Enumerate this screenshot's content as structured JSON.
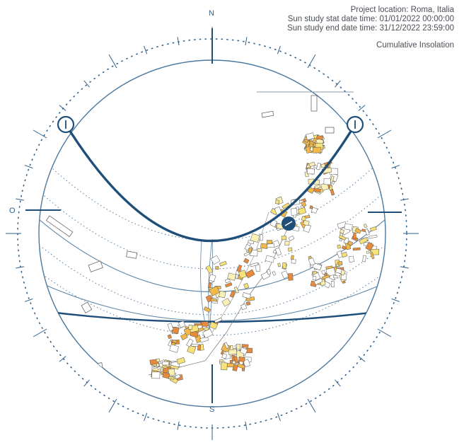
{
  "header": {
    "project_location": "Project location: Roma, Italia",
    "start_datetime": "Sun study stat date time: 01/01/2022 00:00:00",
    "end_datetime": "Sun study end date time: 31/12/2022 23:59:00",
    "analysis_mode": "Cumulative Insolation"
  },
  "compass": {
    "north": "N",
    "south": "S",
    "west": "O"
  },
  "colors": {
    "sun_path": "#1f4f79",
    "ring": "#4c79a0",
    "insolation_low": "#f7e27a",
    "insolation_mid": "#f1b94a",
    "insolation_high": "#e88a3c",
    "building_outline": "#555555"
  },
  "icons": [
    "sun-position-marker-icon",
    "solstice-handle-icon",
    "north-indicator-icon"
  ]
}
